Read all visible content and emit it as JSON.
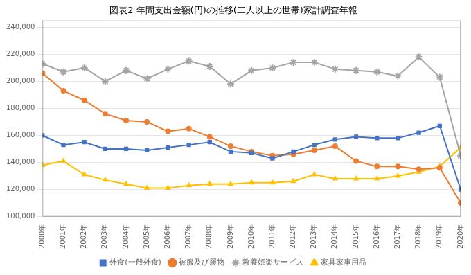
{
  "chart_data": {
    "type": "line",
    "title": "図表2 年間支出金額(円)の推移(二人以上の世帯)家計調査年報",
    "categories": [
      "2000年",
      "2001年",
      "2002年",
      "2003年",
      "2004年",
      "2005年",
      "2006年",
      "2007年",
      "2008年",
      "2009年",
      "2010年",
      "2011年",
      "2012年",
      "2013年",
      "2014年",
      "2015年",
      "2016年",
      "2017年",
      "2018年",
      "2019年",
      "2020年"
    ],
    "series": [
      {
        "name": "外食(一般外食)",
        "color": "#4472C4",
        "marker": "square",
        "values": [
          160000,
          153000,
          155000,
          150000,
          150000,
          149000,
          151000,
          153000,
          155000,
          148000,
          147000,
          143000,
          148000,
          153000,
          157000,
          159000,
          158000,
          158000,
          162000,
          167000,
          120000
        ]
      },
      {
        "name": "被服及び履物",
        "color": "#ED7D31",
        "marker": "circle",
        "values": [
          206000,
          193000,
          186000,
          176000,
          171000,
          170000,
          163000,
          165000,
          159000,
          152000,
          148000,
          145000,
          146000,
          149000,
          152000,
          141000,
          137000,
          137000,
          135000,
          136000,
          110000
        ]
      },
      {
        "name": "教養娯楽サービス",
        "color": "#A5A5A5",
        "marker": "star",
        "values": [
          213000,
          207000,
          210000,
          200000,
          208000,
          202000,
          209000,
          215000,
          211000,
          198000,
          208000,
          210000,
          214000,
          214000,
          209000,
          208000,
          207000,
          204000,
          218000,
          203000,
          145000
        ]
      },
      {
        "name": "家具家事用品",
        "color": "#FFC000",
        "marker": "triangle",
        "values": [
          138000,
          141000,
          131000,
          127000,
          124000,
          121000,
          121000,
          123000,
          124000,
          124000,
          125000,
          125000,
          126000,
          131000,
          128000,
          128000,
          128000,
          130000,
          133000,
          137000,
          151000
        ]
      }
    ],
    "ylim": [
      100000,
      245000
    ],
    "yticks": [
      {
        "value": 100000,
        "label": "100,000"
      },
      {
        "value": 120000,
        "label": "120,000"
      },
      {
        "value": 140000,
        "label": "140,000"
      },
      {
        "value": 160000,
        "label": "160,000"
      },
      {
        "value": 180000,
        "label": "180,000"
      },
      {
        "value": 200000,
        "label": "200,000"
      },
      {
        "value": 220000,
        "label": "220,000"
      },
      {
        "value": 240000,
        "label": "240,000"
      }
    ],
    "grid": true,
    "legend": "bottom"
  }
}
